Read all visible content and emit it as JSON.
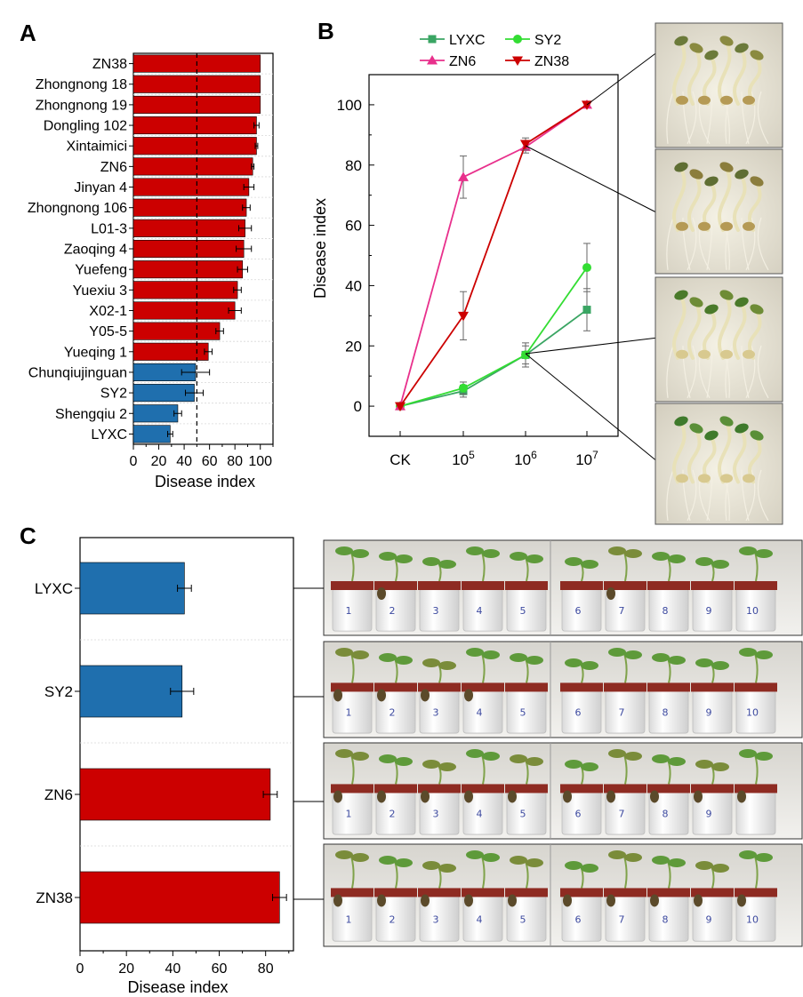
{
  "colors": {
    "red": "#cc0000",
    "blue": "#1f6fae",
    "pink": "#e8308c",
    "green_light": "#33dd33",
    "green_dark": "#3aa563",
    "axis": "#000000"
  },
  "panels": {
    "a": "A",
    "b": "B",
    "c": "C"
  },
  "chart_data": [
    {
      "type": "bar",
      "orientation": "horizontal",
      "panel": "A",
      "categories": [
        "ZN38",
        "Zhongnong 18",
        "Zhongnong 19",
        "Dongling 102",
        "Xintaimici",
        "ZN6",
        "Jinyan 4",
        "Zhongnong 106",
        "L01-3",
        "Zaoqing 4",
        "Yuefeng",
        "Yuexiu 3",
        "X02-1",
        "Y05-5",
        "Yueqing 1",
        "Chunqiujinguan",
        "SY2",
        "Shengqiu 2",
        "LYXC"
      ],
      "values": [
        100,
        100,
        100,
        97,
        97,
        94,
        91,
        89,
        88,
        87,
        86,
        82,
        80,
        68,
        59,
        49,
        48,
        35,
        29
      ],
      "errors": [
        0,
        0,
        0,
        2,
        1,
        1,
        4,
        3,
        5,
        6,
        4,
        3,
        5,
        3,
        3,
        11,
        7,
        3,
        2
      ],
      "group": [
        "red",
        "red",
        "red",
        "red",
        "red",
        "red",
        "red",
        "red",
        "red",
        "red",
        "red",
        "red",
        "red",
        "red",
        "red",
        "blue",
        "blue",
        "blue",
        "blue"
      ],
      "xlabel": "Disease index",
      "xlim": [
        0,
        110
      ],
      "xticks": [
        "0",
        "20",
        "40",
        "60",
        "80",
        "100"
      ],
      "reference_line": 50,
      "grid": false
    },
    {
      "type": "line",
      "panel": "B",
      "categories": [
        "CK",
        "10^5",
        "10^6",
        "10^7"
      ],
      "series": [
        {
          "name": "LYXC",
          "values": [
            0,
            5,
            17,
            32
          ],
          "errors": [
            0,
            2,
            4,
            7
          ],
          "color": "green_dark",
          "marker": "square"
        },
        {
          "name": "SY2",
          "values": [
            0,
            6,
            17,
            46
          ],
          "errors": [
            0,
            2,
            3,
            8
          ],
          "color": "green_light",
          "marker": "circle"
        },
        {
          "name": "ZN6",
          "values": [
            0,
            76,
            86,
            100
          ],
          "errors": [
            0,
            7,
            2,
            0
          ],
          "color": "pink",
          "marker": "triangle-up"
        },
        {
          "name": "ZN38",
          "values": [
            0,
            30,
            87,
            100
          ],
          "errors": [
            0,
            8,
            2,
            0
          ],
          "color": "red",
          "marker": "triangle-down"
        }
      ],
      "ylabel": "Disease index",
      "ylim": [
        -10,
        110
      ],
      "yticks": [
        "0",
        "20",
        "40",
        "60",
        "80",
        "100"
      ],
      "legend": "top",
      "grid": false
    },
    {
      "type": "bar",
      "orientation": "horizontal",
      "panel": "C",
      "categories": [
        "LYXC",
        "SY2",
        "ZN6",
        "ZN38"
      ],
      "values": [
        45,
        44,
        82,
        86
      ],
      "errors": [
        3,
        5,
        3,
        3
      ],
      "group": [
        "blue",
        "blue",
        "red",
        "red"
      ],
      "xlabel": "Disease index",
      "xlim": [
        0,
        92
      ],
      "xticks": [
        "0",
        "20",
        "40",
        "60",
        "80"
      ],
      "grid": false
    }
  ],
  "pot_numbers": [
    [
      "1",
      "2",
      "3",
      "4",
      "5",
      "6",
      "7",
      "8",
      "9",
      "10"
    ],
    [
      "1",
      "2",
      "3",
      "4",
      "5",
      "6",
      "7",
      "8",
      "9",
      "10"
    ],
    [
      "1",
      "2",
      "3",
      "4",
      "5",
      "6",
      "7",
      "8",
      "9",
      ""
    ],
    [
      "1",
      "2",
      "3",
      "4",
      "5",
      "6",
      "7",
      "8",
      "9",
      "10"
    ]
  ]
}
